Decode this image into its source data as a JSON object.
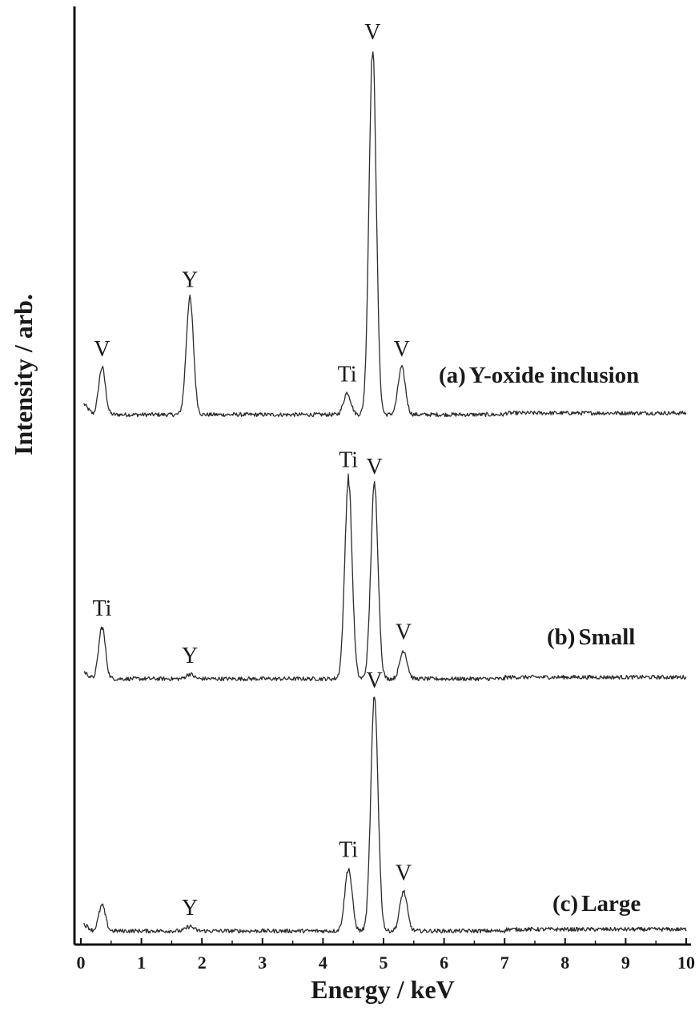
{
  "chart_data": {
    "type": "line",
    "xlabel": "Energy / keV",
    "ylabel": "Intensity / arb.",
    "xlim": [
      0,
      10
    ],
    "xticks": [
      "0",
      "1",
      "2",
      "3",
      "4",
      "5",
      "6",
      "7",
      "8",
      "9",
      "10"
    ],
    "grid": false,
    "legend": "none",
    "line_color": "#2b2b2b",
    "panels": [
      {
        "label": "(a) Y-oxide inclusion",
        "label_prefix": "(a)",
        "label_text": "Y-oxide inclusion",
        "peaks": [
          {
            "element": "V",
            "energy": 0.35,
            "height": 0.13
          },
          {
            "element": "Y",
            "energy": 1.8,
            "height": 0.32
          },
          {
            "element": "Ti",
            "energy": 4.4,
            "height": 0.06
          },
          {
            "element": "V",
            "energy": 4.82,
            "height": 1.0
          },
          {
            "element": "V",
            "energy": 5.3,
            "height": 0.13
          }
        ]
      },
      {
        "label": "(b) Small",
        "label_prefix": "(b)",
        "label_text": "Small",
        "peaks": [
          {
            "element": "Ti",
            "energy": 0.35,
            "height": 0.22
          },
          {
            "element": "Y",
            "energy": 1.8,
            "height": 0.02
          },
          {
            "element": "Ti",
            "energy": 4.42,
            "height": 0.85
          },
          {
            "element": "V",
            "energy": 4.85,
            "height": 0.82
          },
          {
            "element": "V",
            "energy": 5.33,
            "height": 0.12
          }
        ]
      },
      {
        "label": "(c) Large",
        "label_prefix": "(c)",
        "label_text": "Large",
        "peaks": [
          {
            "element": "",
            "energy": 0.35,
            "height": 0.11
          },
          {
            "element": "Y",
            "energy": 1.8,
            "height": 0.02
          },
          {
            "element": "Ti",
            "energy": 4.42,
            "height": 0.27
          },
          {
            "element": "V",
            "energy": 4.85,
            "height": 1.0
          },
          {
            "element": "V",
            "energy": 5.33,
            "height": 0.17
          }
        ]
      }
    ]
  }
}
